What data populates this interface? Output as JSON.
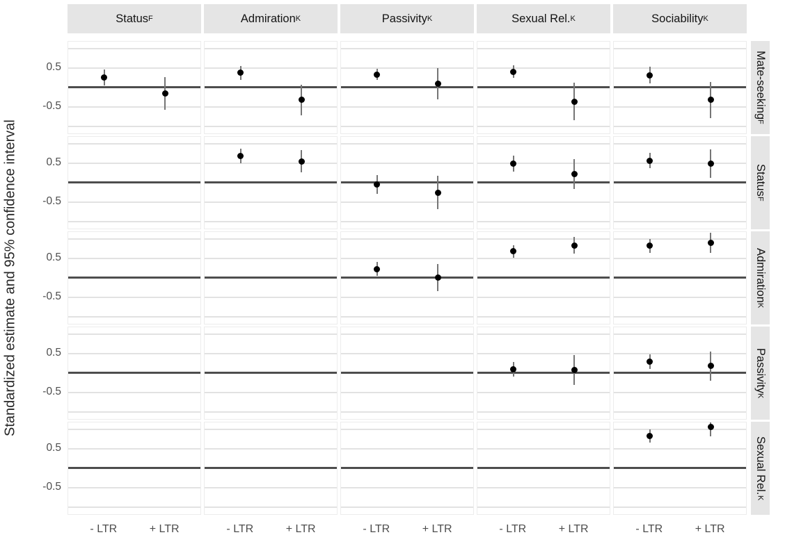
{
  "figure": {
    "title": "",
    "ylabel": "Standardized estimate and 95% confidence interval"
  },
  "colors": {
    "strip_background": "#e5e5e5",
    "panel_background": "#ffffff",
    "major_gridline": "#e2e2e2",
    "zero_reference_line": "#4d4d4d",
    "error_bar": "#757575",
    "point": "#000000",
    "tick_text": "#4d4d4d",
    "strip_text": "#141414"
  },
  "chart_data": {
    "type": "scatter",
    "subtype": "faceted pointrange (estimate with 95% CI), 5x5 facet grid, lower-triangle filled",
    "title": "",
    "ylabel": "Standardized estimate and 95% confidence interval",
    "xlabel": "",
    "legend": "none",
    "grid": "horizontal major gridlines at -1.0, -0.5, 0.5, 1.0; dark reference line at 0",
    "x_categories": [
      "- LTR",
      "+ LTR"
    ],
    "col_facets": [
      {
        "label": "Status",
        "sub": "F"
      },
      {
        "label": "Admiration",
        "sub": "K"
      },
      {
        "label": "Passivity",
        "sub": "K"
      },
      {
        "label": "Sexual Rel.",
        "sub": "K"
      },
      {
        "label": "Sociability",
        "sub": "K"
      }
    ],
    "row_facets": [
      {
        "label": "Mate-seeking",
        "sub": "F"
      },
      {
        "label": "Status",
        "sub": "F"
      },
      {
        "label": "Admiration",
        "sub": "K"
      },
      {
        "label": "Passivity",
        "sub": "K"
      },
      {
        "label": "Sexual Rel.",
        "sub": "K"
      }
    ],
    "y_ticks": [
      "0.5",
      "-0.5"
    ],
    "ylim": [
      -1.22,
      1.17
    ],
    "gridline_values": [
      1.0,
      0.5,
      -0.5,
      -1.0
    ],
    "reference_line": 0,
    "points": [
      {
        "r": 0,
        "c": 0,
        "x": "- LTR",
        "est": 0.25,
        "lo": 0.05,
        "hi": 0.45
      },
      {
        "r": 0,
        "c": 0,
        "x": "+ LTR",
        "est": -0.16,
        "lo": -0.58,
        "hi": 0.26
      },
      {
        "r": 0,
        "c": 1,
        "x": "- LTR",
        "est": 0.37,
        "lo": 0.19,
        "hi": 0.55
      },
      {
        "r": 0,
        "c": 1,
        "x": "+ LTR",
        "est": -0.33,
        "lo": -0.73,
        "hi": 0.07
      },
      {
        "r": 0,
        "c": 2,
        "x": "- LTR",
        "est": 0.33,
        "lo": 0.19,
        "hi": 0.47
      },
      {
        "r": 0,
        "c": 2,
        "x": "+ LTR",
        "est": 0.09,
        "lo": -0.31,
        "hi": 0.49
      },
      {
        "r": 0,
        "c": 3,
        "x": "- LTR",
        "est": 0.4,
        "lo": 0.24,
        "hi": 0.56
      },
      {
        "r": 0,
        "c": 3,
        "x": "+ LTR",
        "est": -0.37,
        "lo": -0.85,
        "hi": 0.11
      },
      {
        "r": 0,
        "c": 4,
        "x": "- LTR",
        "est": 0.31,
        "lo": 0.1,
        "hi": 0.52
      },
      {
        "r": 0,
        "c": 4,
        "x": "+ LTR",
        "est": -0.33,
        "lo": -0.8,
        "hi": 0.14
      },
      {
        "r": 1,
        "c": 1,
        "x": "- LTR",
        "est": 0.68,
        "lo": 0.49,
        "hi": 0.87
      },
      {
        "r": 1,
        "c": 1,
        "x": "+ LTR",
        "est": 0.54,
        "lo": 0.25,
        "hi": 0.83
      },
      {
        "r": 1,
        "c": 2,
        "x": "- LTR",
        "est": -0.06,
        "lo": -0.3,
        "hi": 0.18
      },
      {
        "r": 1,
        "c": 2,
        "x": "+ LTR",
        "est": -0.26,
        "lo": -0.69,
        "hi": 0.17
      },
      {
        "r": 1,
        "c": 3,
        "x": "- LTR",
        "est": 0.48,
        "lo": 0.27,
        "hi": 0.69
      },
      {
        "r": 1,
        "c": 3,
        "x": "+ LTR",
        "est": 0.21,
        "lo": -0.17,
        "hi": 0.59
      },
      {
        "r": 1,
        "c": 4,
        "x": "- LTR",
        "est": 0.56,
        "lo": 0.36,
        "hi": 0.76
      },
      {
        "r": 1,
        "c": 4,
        "x": "+ LTR",
        "est": 0.48,
        "lo": 0.11,
        "hi": 0.85
      },
      {
        "r": 2,
        "c": 2,
        "x": "- LTR",
        "est": 0.22,
        "lo": 0.04,
        "hi": 0.4
      },
      {
        "r": 2,
        "c": 2,
        "x": "+ LTR",
        "est": 0.0,
        "lo": -0.34,
        "hi": 0.34
      },
      {
        "r": 2,
        "c": 3,
        "x": "- LTR",
        "est": 0.67,
        "lo": 0.51,
        "hi": 0.83
      },
      {
        "r": 2,
        "c": 3,
        "x": "+ LTR",
        "est": 0.83,
        "lo": 0.62,
        "hi": 1.04
      },
      {
        "r": 2,
        "c": 4,
        "x": "- LTR",
        "est": 0.82,
        "lo": 0.64,
        "hi": 1.0
      },
      {
        "r": 2,
        "c": 4,
        "x": "+ LTR",
        "est": 0.89,
        "lo": 0.63,
        "hi": 1.15
      },
      {
        "r": 3,
        "c": 3,
        "x": "- LTR",
        "est": 0.09,
        "lo": -0.1,
        "hi": 0.28
      },
      {
        "r": 3,
        "c": 3,
        "x": "+ LTR",
        "est": 0.07,
        "lo": -0.31,
        "hi": 0.45
      },
      {
        "r": 3,
        "c": 4,
        "x": "- LTR",
        "est": 0.28,
        "lo": 0.09,
        "hi": 0.47
      },
      {
        "r": 3,
        "c": 4,
        "x": "+ LTR",
        "est": 0.17,
        "lo": -0.2,
        "hi": 0.54
      },
      {
        "r": 4,
        "c": 4,
        "x": "- LTR",
        "est": 0.82,
        "lo": 0.65,
        "hi": 0.99
      },
      {
        "r": 4,
        "c": 4,
        "x": "+ LTR",
        "est": 1.05,
        "lo": 0.82,
        "hi": 1.28
      }
    ]
  }
}
